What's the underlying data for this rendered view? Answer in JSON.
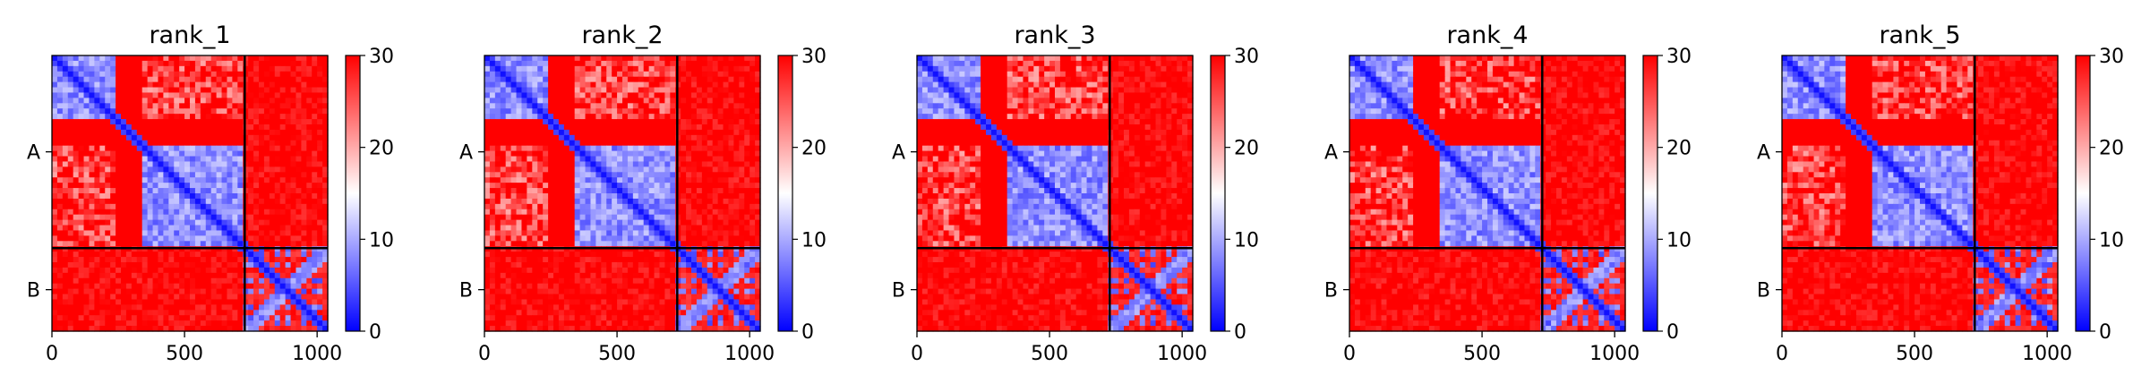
{
  "colors": {
    "low": "#0000ff",
    "mid": "#ffffff",
    "high": "#ff0000",
    "frame": "#000000"
  },
  "chart_data": [
    {
      "type": "heatmap",
      "title": "rank_1",
      "xlim": [
        0,
        1040
      ],
      "xticks": [
        0,
        500,
        1000
      ],
      "chain_labels": [
        "A",
        "B"
      ],
      "chain_lengths": [
        727,
        313
      ],
      "colorbar": {
        "range": [
          0,
          30
        ],
        "ticks": [
          0,
          10,
          20,
          30
        ]
      },
      "colormap": "bwr"
    },
    {
      "type": "heatmap",
      "title": "rank_2",
      "xlim": [
        0,
        1040
      ],
      "xticks": [
        0,
        500,
        1000
      ],
      "chain_labels": [
        "A",
        "B"
      ],
      "chain_lengths": [
        727,
        313
      ],
      "colorbar": {
        "range": [
          0,
          30
        ],
        "ticks": [
          0,
          10,
          20,
          30
        ]
      },
      "colormap": "bwr"
    },
    {
      "type": "heatmap",
      "title": "rank_3",
      "xlim": [
        0,
        1040
      ],
      "xticks": [
        0,
        500,
        1000
      ],
      "chain_labels": [
        "A",
        "B"
      ],
      "chain_lengths": [
        727,
        313
      ],
      "colorbar": {
        "range": [
          0,
          30
        ],
        "ticks": [
          0,
          10,
          20,
          30
        ]
      },
      "colormap": "bwr"
    },
    {
      "type": "heatmap",
      "title": "rank_4",
      "xlim": [
        0,
        1040
      ],
      "xticks": [
        0,
        500,
        1000
      ],
      "chain_labels": [
        "A",
        "B"
      ],
      "chain_lengths": [
        727,
        313
      ],
      "colorbar": {
        "range": [
          0,
          30
        ],
        "ticks": [
          0,
          10,
          20,
          30
        ]
      },
      "colormap": "bwr"
    },
    {
      "type": "heatmap",
      "title": "rank_5",
      "xlim": [
        0,
        1040
      ],
      "xticks": [
        0,
        500,
        1000
      ],
      "chain_labels": [
        "A",
        "B"
      ],
      "chain_lengths": [
        727,
        313
      ],
      "colorbar": {
        "range": [
          0,
          30
        ],
        "ticks": [
          0,
          10,
          20,
          30
        ]
      },
      "colormap": "bwr"
    }
  ]
}
